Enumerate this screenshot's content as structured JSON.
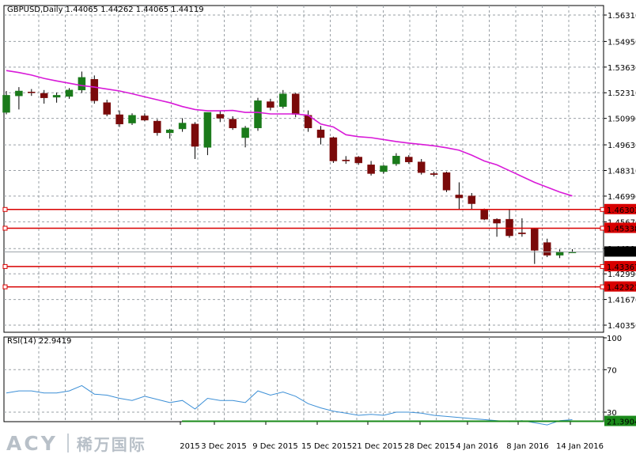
{
  "header": {
    "symbol": "GBPUSD,Daily",
    "ohlc": "1.44065 1.44262 1.44065 1.44119"
  },
  "logo": {
    "brand": "ACY",
    "chinese": "稀万国际"
  },
  "colors": {
    "bull": "#1a7a1a",
    "bear": "#7a0a0a",
    "ma": "#d81ad8",
    "level": "#d80000",
    "rsi": "#3c8fd6",
    "rsi_level": "#1a8a1a",
    "grid": "#9aa0a6"
  },
  "chart_data": [
    {
      "type": "candlestick",
      "title": "GBPUSD,Daily",
      "y_ticks": [
        1.5631,
        1.5495,
        1.5363,
        1.5231,
        1.5099,
        1.4963,
        1.4831,
        1.4699,
        1.4567,
        1.4429,
        1.4299,
        1.4167,
        1.4035
      ],
      "y_tick_labels": [
        "1.56310",
        "1.54950",
        "1.53630",
        "1.52310",
        "1.50990",
        "1.49630",
        "1.48310",
        "1.46990",
        "1.45670",
        "1.44290",
        "1.42990",
        "1.41670",
        "1.40350"
      ],
      "ylim": [
        1.4035,
        1.5631
      ],
      "x_tick_labels": [
        "2015",
        "3 Dec 2015",
        "9 Dec 2015",
        "15 Dec 2015",
        "21 Dec 2015",
        "28 Dec 2015",
        "4 Jan 2016",
        "8 Jan 2016",
        "14 Jan 2016"
      ],
      "current_price": "1.44119",
      "levels": [
        {
          "label": "1.46303",
          "value": 1.46303
        },
        {
          "label": "1.45338",
          "value": 1.45338
        },
        {
          "label": "1.43367",
          "value": 1.43367
        },
        {
          "label": "1.42321",
          "value": 1.42321
        }
      ],
      "candles": [
        {
          "o": 1.513,
          "h": 1.524,
          "l": 1.512,
          "c": 1.5218
        },
        {
          "o": 1.5215,
          "h": 1.526,
          "l": 1.5145,
          "c": 1.524
        },
        {
          "o": 1.5235,
          "h": 1.525,
          "l": 1.5215,
          "c": 1.5232
        },
        {
          "o": 1.5228,
          "h": 1.5245,
          "l": 1.5175,
          "c": 1.5205
        },
        {
          "o": 1.5208,
          "h": 1.5232,
          "l": 1.518,
          "c": 1.5218
        },
        {
          "o": 1.5212,
          "h": 1.5255,
          "l": 1.52,
          "c": 1.5245
        },
        {
          "o": 1.5245,
          "h": 1.534,
          "l": 1.523,
          "c": 1.531
        },
        {
          "o": 1.53,
          "h": 1.532,
          "l": 1.5175,
          "c": 1.519
        },
        {
          "o": 1.518,
          "h": 1.5195,
          "l": 1.511,
          "c": 1.512
        },
        {
          "o": 1.5118,
          "h": 1.514,
          "l": 1.5055,
          "c": 1.507
        },
        {
          "o": 1.5075,
          "h": 1.5125,
          "l": 1.5065,
          "c": 1.5115
        },
        {
          "o": 1.5112,
          "h": 1.5125,
          "l": 1.5085,
          "c": 1.509
        },
        {
          "o": 1.5085,
          "h": 1.5095,
          "l": 1.501,
          "c": 1.5025
        },
        {
          "o": 1.5025,
          "h": 1.5045,
          "l": 1.4995,
          "c": 1.504
        },
        {
          "o": 1.5045,
          "h": 1.51,
          "l": 1.503,
          "c": 1.5075
        },
        {
          "o": 1.507,
          "h": 1.508,
          "l": 1.489,
          "c": 1.4955
        },
        {
          "o": 1.495,
          "h": 1.513,
          "l": 1.491,
          "c": 1.513
        },
        {
          "o": 1.512,
          "h": 1.514,
          "l": 1.508,
          "c": 1.51
        },
        {
          "o": 1.5095,
          "h": 1.511,
          "l": 1.504,
          "c": 1.505
        },
        {
          "o": 1.5,
          "h": 1.506,
          "l": 1.495,
          "c": 1.505
        },
        {
          "o": 1.505,
          "h": 1.5205,
          "l": 1.5035,
          "c": 1.519
        },
        {
          "o": 1.5185,
          "h": 1.52,
          "l": 1.514,
          "c": 1.5155
        },
        {
          "o": 1.516,
          "h": 1.5245,
          "l": 1.515,
          "c": 1.5225
        },
        {
          "o": 1.5225,
          "h": 1.523,
          "l": 1.5105,
          "c": 1.512
        },
        {
          "o": 1.5115,
          "h": 1.514,
          "l": 1.503,
          "c": 1.505
        },
        {
          "o": 1.504,
          "h": 1.506,
          "l": 1.4965,
          "c": 1.5
        },
        {
          "o": 1.5,
          "h": 1.5005,
          "l": 1.487,
          "c": 1.488
        },
        {
          "o": 1.4885,
          "h": 1.4905,
          "l": 1.4865,
          "c": 1.488
        },
        {
          "o": 1.49,
          "h": 1.4905,
          "l": 1.486,
          "c": 1.487
        },
        {
          "o": 1.486,
          "h": 1.488,
          "l": 1.4805,
          "c": 1.4815
        },
        {
          "o": 1.4825,
          "h": 1.486,
          "l": 1.4815,
          "c": 1.4855
        },
        {
          "o": 1.4865,
          "h": 1.492,
          "l": 1.4855,
          "c": 1.4905
        },
        {
          "o": 1.49,
          "h": 1.491,
          "l": 1.4865,
          "c": 1.4875
        },
        {
          "o": 1.4875,
          "h": 1.489,
          "l": 1.481,
          "c": 1.482
        },
        {
          "o": 1.4815,
          "h": 1.4825,
          "l": 1.48,
          "c": 1.481
        },
        {
          "o": 1.482,
          "h": 1.4825,
          "l": 1.472,
          "c": 1.473
        },
        {
          "o": 1.4705,
          "h": 1.477,
          "l": 1.463,
          "c": 1.469
        },
        {
          "o": 1.47,
          "h": 1.4715,
          "l": 1.463,
          "c": 1.466
        },
        {
          "o": 1.463,
          "h": 1.4635,
          "l": 1.4575,
          "c": 1.458
        },
        {
          "o": 1.458,
          "h": 1.4585,
          "l": 1.449,
          "c": 1.456
        },
        {
          "o": 1.458,
          "h": 1.463,
          "l": 1.4485,
          "c": 1.4495
        },
        {
          "o": 1.451,
          "h": 1.4585,
          "l": 1.449,
          "c": 1.4505
        },
        {
          "o": 1.453,
          "h": 1.4535,
          "l": 1.435,
          "c": 1.442
        },
        {
          "o": 1.446,
          "h": 1.448,
          "l": 1.4385,
          "c": 1.4395
        },
        {
          "o": 1.4395,
          "h": 1.4425,
          "l": 1.438,
          "c": 1.4412
        },
        {
          "o": 1.4407,
          "h": 1.4426,
          "l": 1.4407,
          "c": 1.4412
        }
      ],
      "ma": [
        1.5345,
        1.5335,
        1.5322,
        1.5305,
        1.5292,
        1.528,
        1.5268,
        1.526,
        1.525,
        1.524,
        1.5226,
        1.521,
        1.5195,
        1.518,
        1.516,
        1.5145,
        1.5138,
        1.5138,
        1.514,
        1.513,
        1.513,
        1.5122,
        1.5122,
        1.5122,
        1.5115,
        1.507,
        1.5055,
        1.5015,
        1.5005,
        1.5,
        1.499,
        1.498,
        1.4972,
        1.4965,
        1.4958,
        1.4948,
        1.4935,
        1.491,
        1.488,
        1.486,
        1.483,
        1.48,
        1.477,
        1.4745,
        1.472,
        1.47
      ]
    },
    {
      "type": "line",
      "title": "RSI(14) 22.9419",
      "series": [
        {
          "name": "RSI(14)",
          "values": [
            48,
            50,
            50,
            48,
            48,
            50,
            55,
            47,
            46,
            43,
            41,
            45,
            42,
            39,
            41,
            33,
            43,
            41,
            41,
            39,
            50,
            46,
            49,
            45,
            38,
            34,
            31,
            29,
            27,
            28,
            27,
            30,
            30,
            29,
            27,
            26,
            25,
            24,
            23,
            22,
            21,
            22,
            20,
            18,
            22,
            22.94
          ]
        }
      ],
      "ylim": [
        0,
        100
      ],
      "y_ticks": [
        100,
        70,
        30
      ],
      "y_tick_labels": [
        "100",
        "70",
        "30"
      ],
      "level_label": "21.3904",
      "level_value": 21.39
    }
  ]
}
